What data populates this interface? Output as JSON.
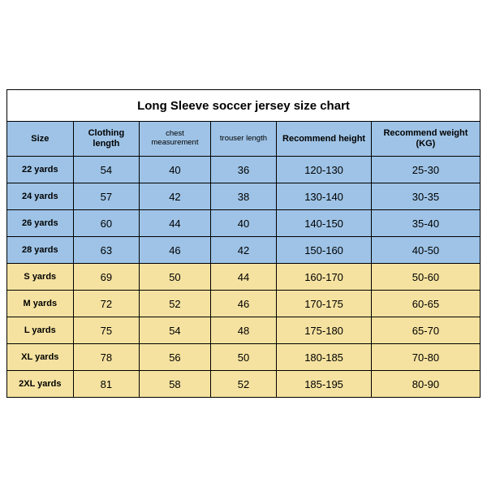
{
  "title": "Long Sleeve soccer jersey size chart",
  "columns": [
    "Size",
    "Clothing length",
    "chest measurement",
    "trouser length",
    "Recommend height",
    "Recommend weight (KG)"
  ],
  "col_widths_pct": [
    14,
    14,
    15,
    14,
    20,
    23
  ],
  "header_small_font_cols": [
    2,
    3
  ],
  "colors": {
    "blue": "#9ec3e6",
    "yellow": "#f5e2a0",
    "border": "#000000",
    "background": "#ffffff"
  },
  "rows": [
    {
      "cells": [
        "22 yards",
        "54",
        "40",
        "36",
        "120-130",
        "25-30"
      ],
      "bg": "blue"
    },
    {
      "cells": [
        "24 yards",
        "57",
        "42",
        "38",
        "130-140",
        "30-35"
      ],
      "bg": "blue"
    },
    {
      "cells": [
        "26 yards",
        "60",
        "44",
        "40",
        "140-150",
        "35-40"
      ],
      "bg": "blue"
    },
    {
      "cells": [
        "28 yards",
        "63",
        "46",
        "42",
        "150-160",
        "40-50"
      ],
      "bg": "blue"
    },
    {
      "cells": [
        "S yards",
        "69",
        "50",
        "44",
        "160-170",
        "50-60"
      ],
      "bg": "yellow"
    },
    {
      "cells": [
        "M yards",
        "72",
        "52",
        "46",
        "170-175",
        "60-65"
      ],
      "bg": "yellow"
    },
    {
      "cells": [
        "L yards",
        "75",
        "54",
        "48",
        "175-180",
        "65-70"
      ],
      "bg": "yellow"
    },
    {
      "cells": [
        "XL yards",
        "78",
        "56",
        "50",
        "180-185",
        "70-80"
      ],
      "bg": "yellow"
    },
    {
      "cells": [
        "2XL yards",
        "81",
        "58",
        "52",
        "185-195",
        "80-90"
      ],
      "bg": "yellow"
    }
  ]
}
